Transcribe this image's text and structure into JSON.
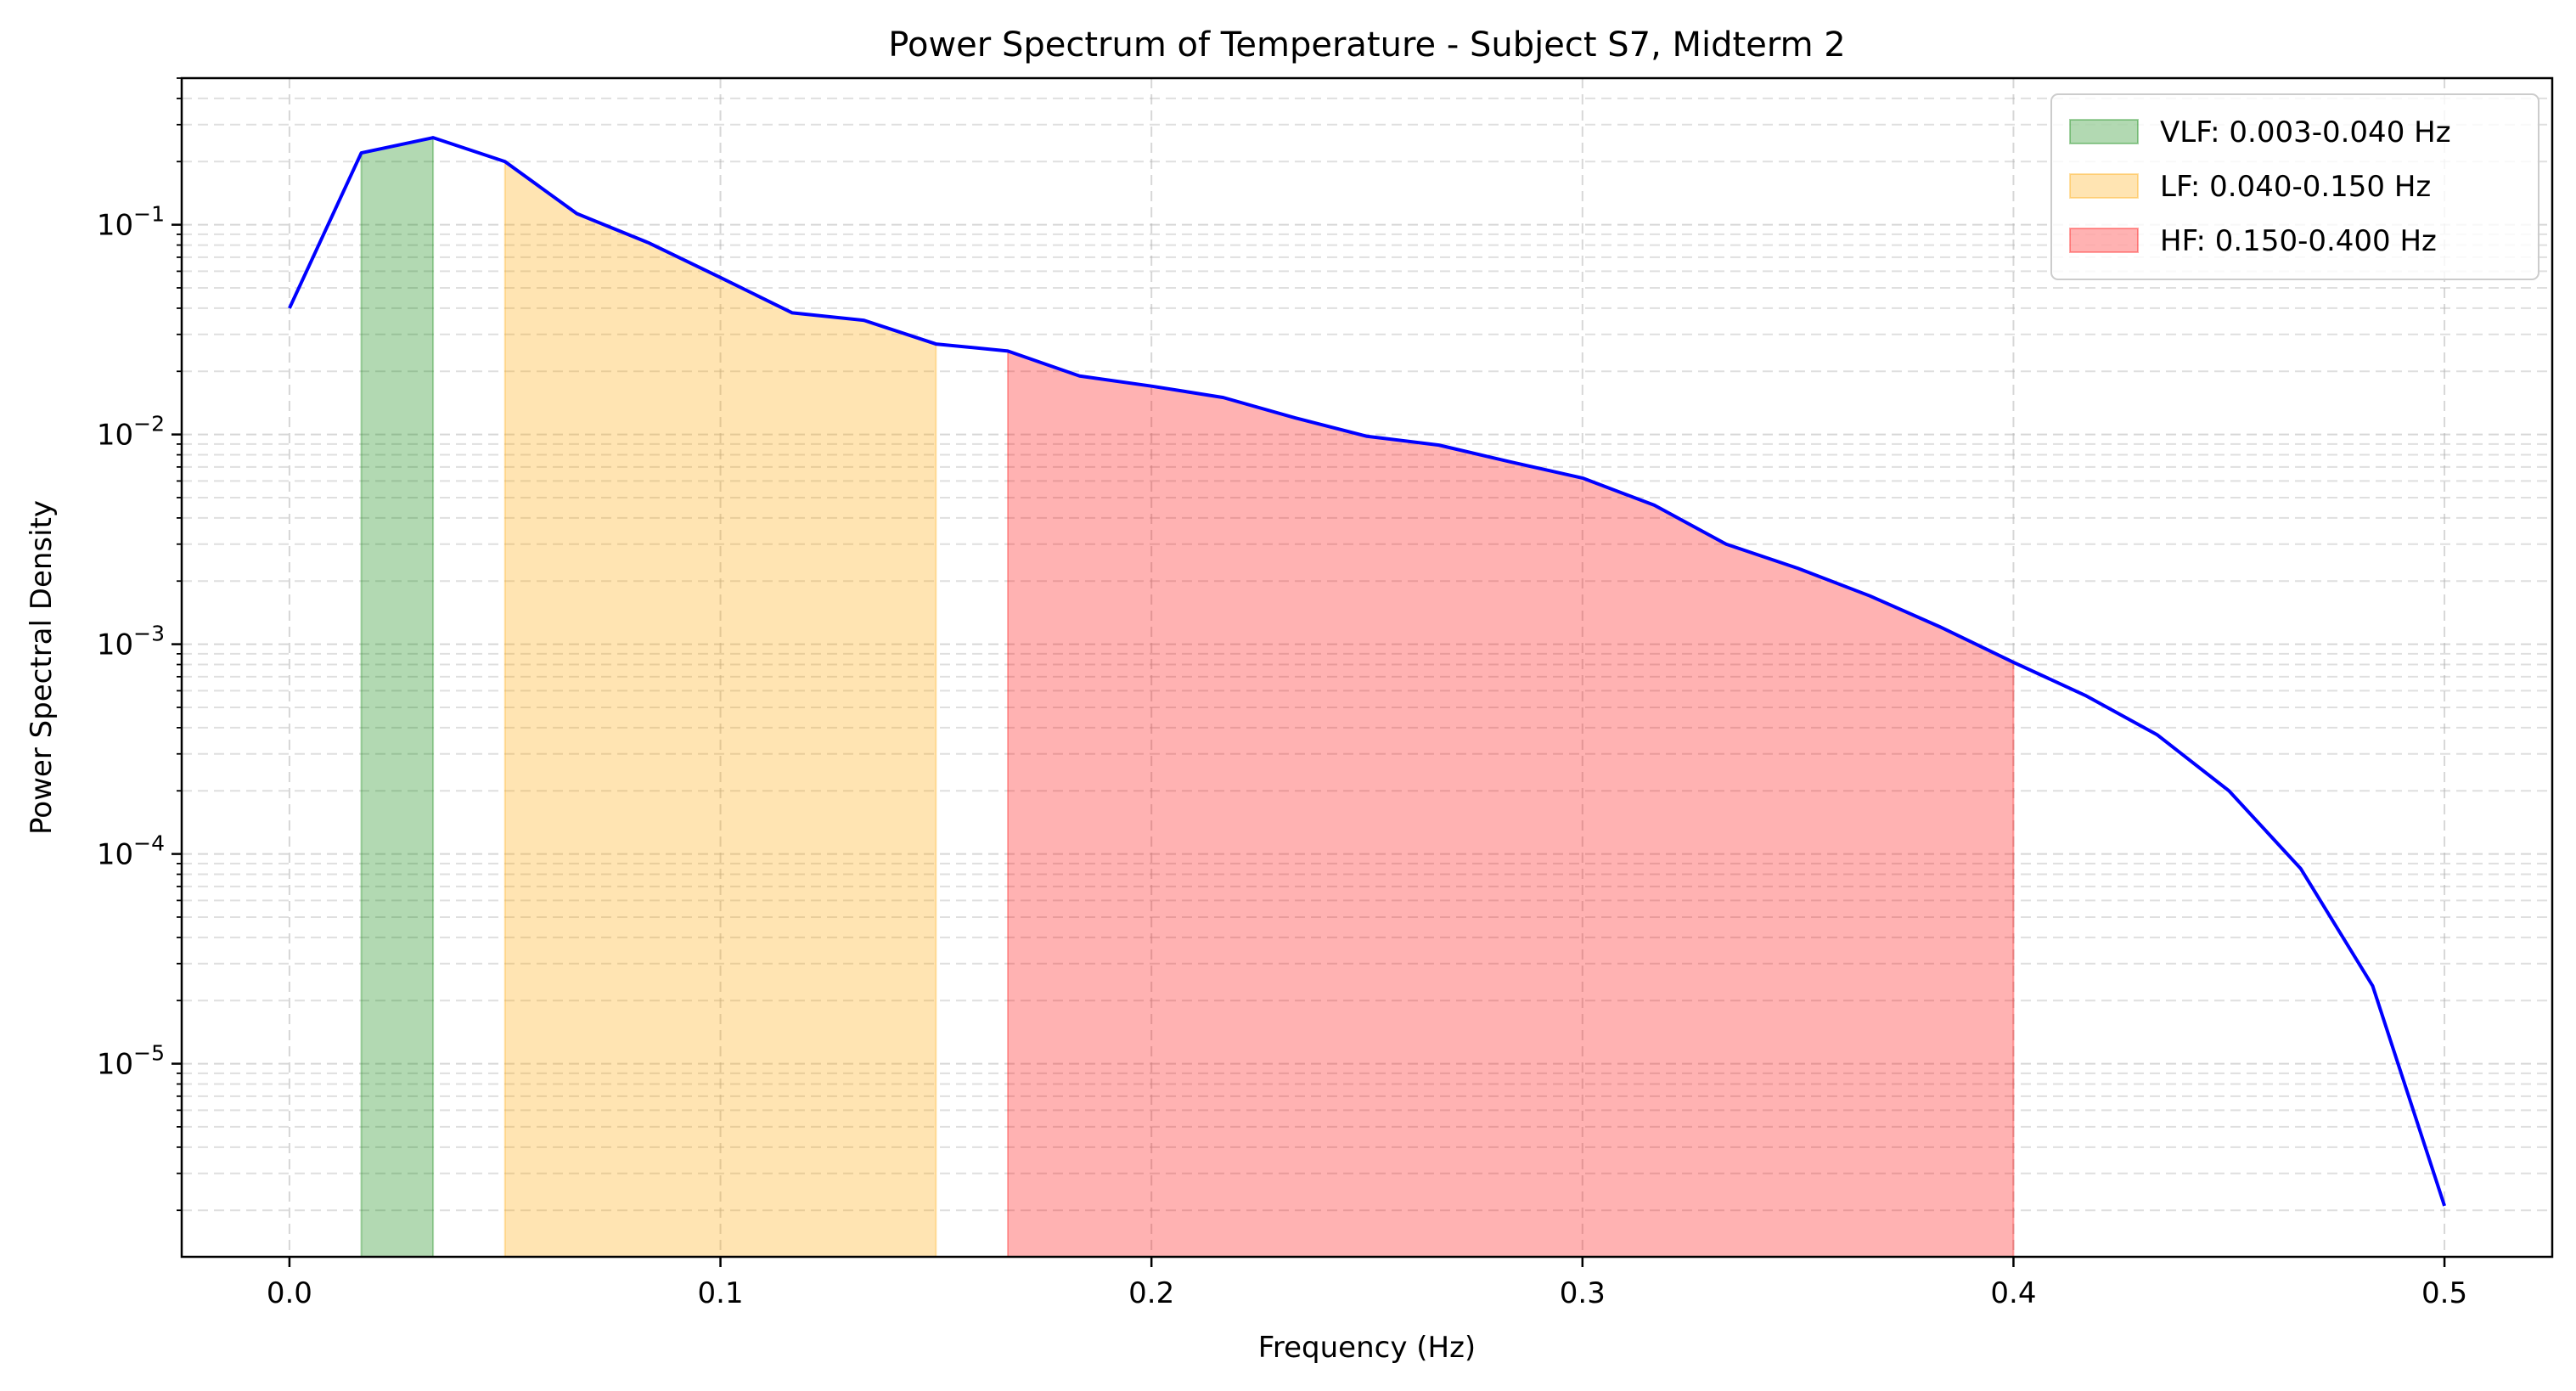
{
  "chart_data": {
    "type": "line",
    "title": "Power Spectrum of Temperature - Subject S7, Midterm 2",
    "xlabel": "Frequency (Hz)",
    "ylabel": "Power Spectral Density",
    "xlim": [
      -0.025,
      0.525
    ],
    "ylim": [
      1.2e-06,
      0.5
    ],
    "yscale": "log",
    "grid": true,
    "x_ticks": [
      0.0,
      0.1,
      0.2,
      0.3,
      0.4,
      0.5
    ],
    "x_tick_labels": [
      "0.0",
      "0.1",
      "0.2",
      "0.3",
      "0.4",
      "0.5"
    ],
    "y_ticks": [
      1e-05,
      0.0001,
      0.001,
      0.01,
      0.1
    ],
    "y_tick_labels": [
      {
        "base": "10",
        "exp": "−5"
      },
      {
        "base": "10",
        "exp": "−4"
      },
      {
        "base": "10",
        "exp": "−3"
      },
      {
        "base": "10",
        "exp": "−2"
      },
      {
        "base": "10",
        "exp": "−1"
      }
    ],
    "series": [
      {
        "color": "#0000ff",
        "x": [
          0.0,
          0.01667,
          0.03333,
          0.05,
          0.06667,
          0.08333,
          0.1,
          0.11667,
          0.13333,
          0.15,
          0.16667,
          0.18333,
          0.2,
          0.21667,
          0.23333,
          0.25,
          0.26667,
          0.28333,
          0.3,
          0.31667,
          0.33333,
          0.35,
          0.36667,
          0.38333,
          0.4,
          0.41667,
          0.43333,
          0.45,
          0.46667,
          0.48333,
          0.5
        ],
        "y": [
          0.04,
          0.22,
          0.26,
          0.2,
          0.113,
          0.082,
          0.056,
          0.038,
          0.035,
          0.027,
          0.025,
          0.019,
          0.017,
          0.015,
          0.012,
          0.0098,
          0.0089,
          0.0074,
          0.0062,
          0.0046,
          0.003,
          0.0023,
          0.0017,
          0.0012,
          0.00082,
          0.00057,
          0.00037,
          0.0002,
          8.5e-05,
          2.35e-05,
          2.1e-06
        ]
      }
    ],
    "bands": [
      {
        "label": "VLF: 0.003-0.040 Hz",
        "color": "#008000",
        "alpha": 0.3,
        "x_from": 0.01667,
        "x_to": 0.03333
      },
      {
        "label": "LF: 0.040-0.150 Hz",
        "color": "#ffa500",
        "alpha": 0.3,
        "x_from": 0.05,
        "x_to": 0.15
      },
      {
        "label": "HF: 0.150-0.400 Hz",
        "color": "#ff0000",
        "alpha": 0.3,
        "x_from": 0.16667,
        "x_to": 0.4
      }
    ],
    "legend_position": "top-right"
  }
}
